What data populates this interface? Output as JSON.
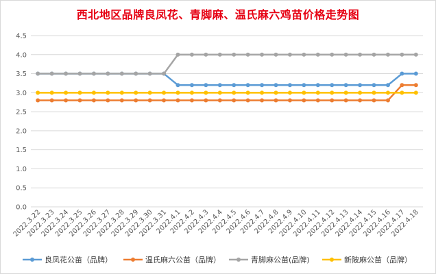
{
  "chart_data": {
    "type": "line",
    "title": "西北地区品牌良凤花、青脚麻、温氏麻六鸡苗价格走势图",
    "xlabel": "",
    "ylabel": "",
    "ylim": [
      0,
      4.5
    ],
    "yticks": [
      "0.0",
      "0.5",
      "1.0",
      "1.5",
      "2.0",
      "2.5",
      "3.0",
      "3.5",
      "4.0",
      "4.5"
    ],
    "grid": true,
    "legend": "bottom",
    "categories": [
      "2022.3.22",
      "2022.3.23",
      "2022.3.24",
      "2022.3.25",
      "2022.3.26",
      "2022.3.27",
      "2022.3.28",
      "2022.3.29",
      "2022.3.30",
      "2022.3.31",
      "2022.4.1",
      "2022.4.2",
      "2022.4.3",
      "2022.4.4",
      "2022.4.5",
      "2022.4.6",
      "2022.4.7",
      "2022.4.8",
      "2022.4.9",
      "2022.4.10",
      "2022.4.11",
      "2022.4.12",
      "2022.4.13",
      "2022.4.14",
      "2022.4.15",
      "2022.4.16",
      "2022.4.17",
      "2022.4.18"
    ],
    "series": [
      {
        "name": "良凤花公苗（品牌）",
        "color": "#5b9bd5",
        "values": [
          3.5,
          3.5,
          3.5,
          3.5,
          3.5,
          3.5,
          3.5,
          3.5,
          3.5,
          3.5,
          3.2,
          3.2,
          3.2,
          3.2,
          3.2,
          3.2,
          3.2,
          3.2,
          3.2,
          3.2,
          3.2,
          3.2,
          3.2,
          3.2,
          3.2,
          3.2,
          3.5,
          3.5
        ]
      },
      {
        "name": "温氏麻六公苗（品牌）",
        "color": "#ed7d31",
        "values": [
          2.8,
          2.8,
          2.8,
          2.8,
          2.8,
          2.8,
          2.8,
          2.8,
          2.8,
          2.8,
          2.8,
          2.8,
          2.8,
          2.8,
          2.8,
          2.8,
          2.8,
          2.8,
          2.8,
          2.8,
          2.8,
          2.8,
          2.8,
          2.8,
          2.8,
          2.8,
          3.2,
          3.2
        ]
      },
      {
        "name": "青脚麻公苗(品牌)",
        "color": "#a5a5a5",
        "values": [
          3.5,
          3.5,
          3.5,
          3.5,
          3.5,
          3.5,
          3.5,
          3.5,
          3.5,
          3.5,
          4.0,
          4.0,
          4.0,
          4.0,
          4.0,
          4.0,
          4.0,
          4.0,
          4.0,
          4.0,
          4.0,
          4.0,
          4.0,
          4.0,
          4.0,
          4.0,
          4.0,
          4.0
        ]
      },
      {
        "name": "新陂麻公苗（品牌）",
        "color": "#ffc000",
        "values": [
          3.0,
          3.0,
          3.0,
          3.0,
          3.0,
          3.0,
          3.0,
          3.0,
          3.0,
          3.0,
          3.0,
          3.0,
          3.0,
          3.0,
          3.0,
          3.0,
          3.0,
          3.0,
          3.0,
          3.0,
          3.0,
          3.0,
          3.0,
          3.0,
          3.0,
          3.0,
          3.0,
          3.0
        ]
      }
    ]
  }
}
